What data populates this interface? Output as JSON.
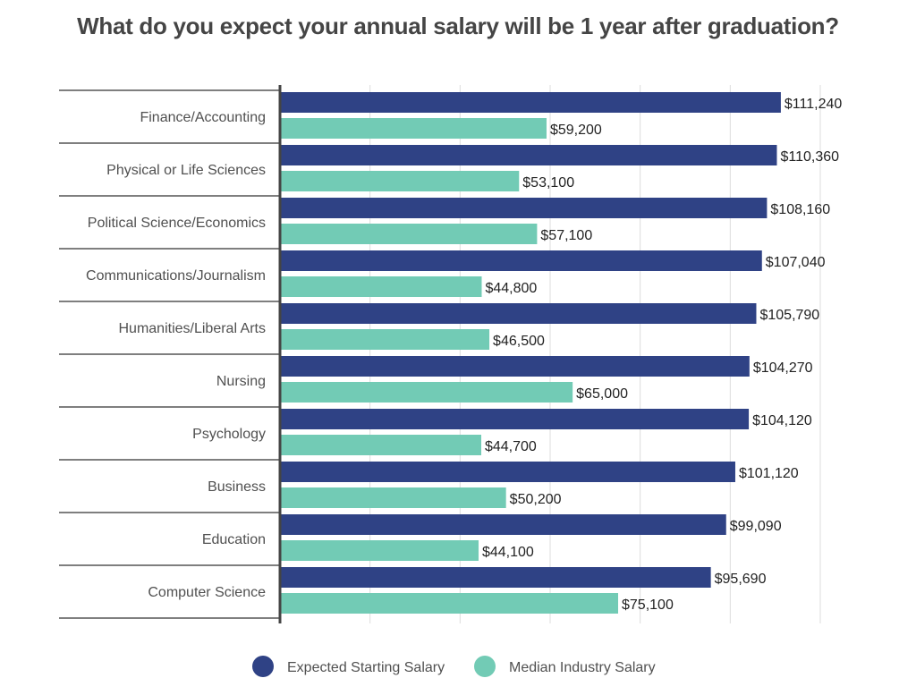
{
  "chart_data": {
    "type": "bar",
    "orientation": "horizontal",
    "title": "What do you expect your annual salary will be 1 year after graduation?",
    "xlabel": "",
    "ylabel": "",
    "xlim": [
      0,
      120000
    ],
    "grid": true,
    "legend_position": "bottom",
    "categories": [
      "Finance/Accounting",
      "Physical or Life Sciences",
      "Political Science/Economics",
      "Communications/Journalism",
      "Humanities/Liberal Arts",
      "Nursing",
      "Psychology",
      "Business",
      "Education",
      "Computer Science"
    ],
    "series": [
      {
        "name": "Expected Starting Salary",
        "color": "#2f4285",
        "values": [
          111240,
          110360,
          108160,
          107040,
          105790,
          104270,
          104120,
          101120,
          99090,
          95690
        ],
        "labels": [
          "$111,240",
          "$110,360",
          "$108,160",
          "$107,040",
          "$105,790",
          "$104,270",
          "$104,120",
          "$101,120",
          "$99,090",
          "$95,690"
        ]
      },
      {
        "name": "Median Industry Salary",
        "color": "#72cbb5",
        "values": [
          59200,
          53100,
          57100,
          44800,
          46500,
          65000,
          44700,
          50200,
          44100,
          75100
        ],
        "labels": [
          "$59,200",
          "$53,100",
          "$57,100",
          "$44,800",
          "$46,500",
          "$65,000",
          "$44,700",
          "$50,200",
          "$44,100",
          "$75,100"
        ]
      }
    ]
  }
}
